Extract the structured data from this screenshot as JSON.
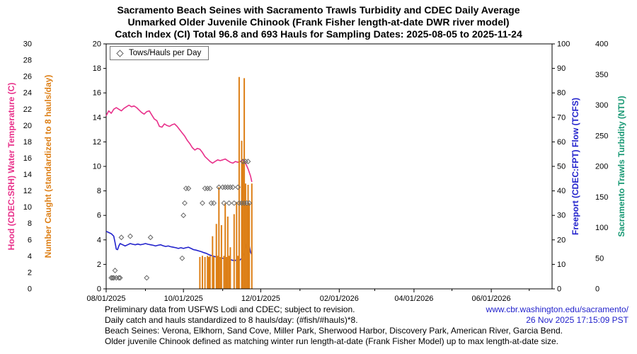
{
  "titles": {
    "line1": "Sacramento Beach Seines with Sacramento Trawls Turbidity and CDEC Daily Average",
    "line2": "Unmarked Older Juvenile Chinook (Frank Fisher length-at-date DWR river model)",
    "line3": "Catch Index (CI) Total 96.8 and 693 Hauls for Sampling Dates: 2025-08-05 to 2025-11-24"
  },
  "legend": {
    "symbol_icon": "open-diamond",
    "label": "Tows/Hauls per Day"
  },
  "axes": {
    "left_outer": {
      "label": "Hood (CDEC:SRH) Water Temperature (C)",
      "color": "#e8308a",
      "min": 0,
      "max": 30,
      "step": 2
    },
    "left_inner": {
      "label": "Number Caught (standardized to 8 hauls/day)",
      "color": "#dd7f16",
      "min": 0,
      "max": 20,
      "step": 2
    },
    "right_inner": {
      "label": "Freeport (CDEC:FPT) Flow (TCFS)",
      "color": "#2222cc",
      "min": 0,
      "max": 100,
      "step": 10
    },
    "right_outer": {
      "label": "Sacramento Trawls Turbidity (NTU)",
      "color": "#169873",
      "min": 0,
      "max": 400,
      "step": 50
    }
  },
  "chart_data": {
    "type": "mixed",
    "x_axis": {
      "start": "2025-08-01",
      "end": "2026-07-19",
      "tick_labels": [
        "08/01/2025",
        "10/01/2025",
        "12/01/2025",
        "02/01/2026",
        "04/01/2026",
        "06/01/2026"
      ]
    },
    "series": [
      {
        "id": "temperature",
        "name": "Hood (CDEC:SRH) Water Temperature (C)",
        "type": "line",
        "axis_max": 30,
        "color": "#e8308a",
        "points": [
          [
            "2025-08-01",
            21.2
          ],
          [
            "2025-08-03",
            21.8
          ],
          [
            "2025-08-05",
            21.5
          ],
          [
            "2025-08-07",
            22.0
          ],
          [
            "2025-08-09",
            22.2
          ],
          [
            "2025-08-11",
            22.0
          ],
          [
            "2025-08-13",
            21.8
          ],
          [
            "2025-08-15",
            22.1
          ],
          [
            "2025-08-17",
            22.3
          ],
          [
            "2025-08-19",
            22.5
          ],
          [
            "2025-08-21",
            22.3
          ],
          [
            "2025-08-23",
            22.4
          ],
          [
            "2025-08-25",
            22.2
          ],
          [
            "2025-08-27",
            21.9
          ],
          [
            "2025-08-29",
            21.6
          ],
          [
            "2025-08-31",
            21.4
          ],
          [
            "2025-09-02",
            21.7
          ],
          [
            "2025-09-04",
            21.8
          ],
          [
            "2025-09-06",
            21.3
          ],
          [
            "2025-09-08",
            20.8
          ],
          [
            "2025-09-10",
            20.6
          ],
          [
            "2025-09-12",
            19.9
          ],
          [
            "2025-09-14",
            19.8
          ],
          [
            "2025-09-16",
            20.2
          ],
          [
            "2025-09-18",
            20.0
          ],
          [
            "2025-09-20",
            19.9
          ],
          [
            "2025-09-22",
            20.1
          ],
          [
            "2025-09-24",
            20.2
          ],
          [
            "2025-09-26",
            19.9
          ],
          [
            "2025-09-28",
            19.5
          ],
          [
            "2025-09-30",
            19.1
          ],
          [
            "2025-10-02",
            18.7
          ],
          [
            "2025-10-04",
            18.2
          ],
          [
            "2025-10-06",
            17.8
          ],
          [
            "2025-10-08",
            17.3
          ],
          [
            "2025-10-10",
            17.0
          ],
          [
            "2025-10-12",
            17.2
          ],
          [
            "2025-10-14",
            17.1
          ],
          [
            "2025-10-16",
            16.7
          ],
          [
            "2025-10-18",
            16.2
          ],
          [
            "2025-10-20",
            15.9
          ],
          [
            "2025-10-22",
            15.6
          ],
          [
            "2025-10-24",
            15.4
          ],
          [
            "2025-10-26",
            15.6
          ],
          [
            "2025-10-28",
            15.8
          ],
          [
            "2025-10-30",
            15.7
          ],
          [
            "2025-11-01",
            15.8
          ],
          [
            "2025-11-03",
            15.9
          ],
          [
            "2025-11-05",
            15.7
          ],
          [
            "2025-11-07",
            15.5
          ],
          [
            "2025-11-09",
            15.4
          ],
          [
            "2025-11-11",
            15.6
          ],
          [
            "2025-11-13",
            15.5
          ],
          [
            "2025-11-15",
            15.6
          ],
          [
            "2025-11-17",
            15.8
          ],
          [
            "2025-11-19",
            15.4
          ],
          [
            "2025-11-21",
            14.7
          ],
          [
            "2025-11-23",
            13.8
          ],
          [
            "2025-11-24",
            13.1
          ]
        ]
      },
      {
        "id": "flow",
        "name": "Freeport (CDEC:FPT) Flow (TCFS)",
        "type": "line",
        "axis_max": 100,
        "color": "#2222cc",
        "points": [
          [
            "2025-08-01",
            23.5
          ],
          [
            "2025-08-03",
            23.0
          ],
          [
            "2025-08-05",
            22.5
          ],
          [
            "2025-08-07",
            21.5
          ],
          [
            "2025-08-08",
            19.0
          ],
          [
            "2025-08-09",
            16.2
          ],
          [
            "2025-08-10",
            16.0
          ],
          [
            "2025-08-11",
            17.5
          ],
          [
            "2025-08-12",
            18.5
          ],
          [
            "2025-08-14",
            18.0
          ],
          [
            "2025-08-16",
            17.5
          ],
          [
            "2025-08-18",
            18.0
          ],
          [
            "2025-08-20",
            18.5
          ],
          [
            "2025-08-22",
            18.2
          ],
          [
            "2025-08-24",
            18.0
          ],
          [
            "2025-08-26",
            18.3
          ],
          [
            "2025-08-28",
            18.0
          ],
          [
            "2025-08-30",
            18.2
          ],
          [
            "2025-09-01",
            18.5
          ],
          [
            "2025-09-03",
            18.2
          ],
          [
            "2025-09-05",
            18.0
          ],
          [
            "2025-09-07",
            17.8
          ],
          [
            "2025-09-09",
            17.5
          ],
          [
            "2025-09-11",
            17.8
          ],
          [
            "2025-09-13",
            18.0
          ],
          [
            "2025-09-15",
            17.6
          ],
          [
            "2025-09-17",
            17.3
          ],
          [
            "2025-09-19",
            17.5
          ],
          [
            "2025-09-21",
            17.2
          ],
          [
            "2025-09-23",
            17.0
          ],
          [
            "2025-09-25",
            16.8
          ],
          [
            "2025-09-27",
            16.5
          ],
          [
            "2025-09-29",
            16.8
          ],
          [
            "2025-10-01",
            16.5
          ],
          [
            "2025-10-03",
            16.8
          ],
          [
            "2025-10-05",
            17.0
          ],
          [
            "2025-10-07",
            16.5
          ],
          [
            "2025-10-09",
            16.0
          ],
          [
            "2025-10-11",
            15.8
          ],
          [
            "2025-10-13",
            15.5
          ],
          [
            "2025-10-15",
            15.2
          ],
          [
            "2025-10-17",
            14.8
          ],
          [
            "2025-10-19",
            14.5
          ],
          [
            "2025-10-21",
            14.0
          ],
          [
            "2025-10-23",
            13.6
          ],
          [
            "2025-10-25",
            13.3
          ],
          [
            "2025-10-27",
            13.0
          ],
          [
            "2025-10-29",
            12.8
          ],
          [
            "2025-10-31",
            12.6
          ],
          [
            "2025-11-02",
            12.4
          ],
          [
            "2025-11-04",
            12.2
          ],
          [
            "2025-11-06",
            12.0
          ],
          [
            "2025-11-08",
            11.8
          ],
          [
            "2025-11-10",
            11.5
          ],
          [
            "2025-11-12",
            11.8
          ],
          [
            "2025-11-14",
            11.5
          ],
          [
            "2025-11-16",
            12.5
          ],
          [
            "2025-11-18",
            14.5
          ],
          [
            "2025-11-19",
            16.5
          ],
          [
            "2025-11-20",
            18.5
          ],
          [
            "2025-11-21",
            19.5
          ],
          [
            "2025-11-22",
            17.5
          ],
          [
            "2025-11-23",
            15.0
          ],
          [
            "2025-11-24",
            14.0
          ]
        ]
      },
      {
        "id": "catch",
        "name": "Number Caught (standardized to 8 hauls/day)",
        "type": "bar",
        "axis_max": 20,
        "color": "#dd7f16",
        "points": [
          [
            "2025-10-14",
            2.6
          ],
          [
            "2025-10-16",
            2.7
          ],
          [
            "2025-10-18",
            2.6
          ],
          [
            "2025-10-20",
            2.7
          ],
          [
            "2025-10-21",
            2.6
          ],
          [
            "2025-10-22",
            2.7
          ],
          [
            "2025-10-24",
            4.3
          ],
          [
            "2025-10-25",
            2.6
          ],
          [
            "2025-10-27",
            5.3
          ],
          [
            "2025-10-28",
            2.7
          ],
          [
            "2025-10-29",
            8.3
          ],
          [
            "2025-10-30",
            2.6
          ],
          [
            "2025-10-31",
            5.2
          ],
          [
            "2025-11-02",
            2.7
          ],
          [
            "2025-11-03",
            7.0
          ],
          [
            "2025-11-04",
            2.6
          ],
          [
            "2025-11-05",
            5.9
          ],
          [
            "2025-11-06",
            2.7
          ],
          [
            "2025-11-07",
            3.4
          ],
          [
            "2025-11-10",
            6.1
          ],
          [
            "2025-11-12",
            7.1
          ],
          [
            "2025-11-13",
            2.7
          ],
          [
            "2025-11-14",
            17.3
          ],
          [
            "2025-11-16",
            12.1
          ],
          [
            "2025-11-17",
            10.4
          ],
          [
            "2025-11-18",
            17.2
          ],
          [
            "2025-11-19",
            8.6
          ],
          [
            "2025-11-20",
            6.9
          ],
          [
            "2025-11-21",
            8.5
          ],
          [
            "2025-11-22",
            7.0
          ],
          [
            "2025-11-24",
            8.6
          ]
        ]
      },
      {
        "id": "hauls",
        "name": "Tows/Hauls per Day",
        "type": "scatter-diamond",
        "axis_max": 20,
        "color": "#666666",
        "points": [
          [
            "2025-08-05",
            0.9
          ],
          [
            "2025-08-06",
            0.9
          ],
          [
            "2025-08-07",
            0.9
          ],
          [
            "2025-08-08",
            1.5
          ],
          [
            "2025-08-09",
            0.9
          ],
          [
            "2025-08-11",
            0.9
          ],
          [
            "2025-08-12",
            0.9
          ],
          [
            "2025-08-13",
            4.2
          ],
          [
            "2025-08-20",
            4.3
          ],
          [
            "2025-09-02",
            0.9
          ],
          [
            "2025-09-05",
            4.2
          ],
          [
            "2025-09-30",
            2.5
          ],
          [
            "2025-10-01",
            6.0
          ],
          [
            "2025-10-02",
            7.0
          ],
          [
            "2025-10-03",
            8.2
          ],
          [
            "2025-10-05",
            8.2
          ],
          [
            "2025-10-16",
            7.0
          ],
          [
            "2025-10-18",
            8.2
          ],
          [
            "2025-10-20",
            8.2
          ],
          [
            "2025-10-22",
            8.2
          ],
          [
            "2025-10-23",
            7.0
          ],
          [
            "2025-10-25",
            7.0
          ],
          [
            "2025-10-29",
            8.3
          ],
          [
            "2025-11-01",
            8.3
          ],
          [
            "2025-11-02",
            7.0
          ],
          [
            "2025-11-03",
            8.3
          ],
          [
            "2025-11-05",
            8.3
          ],
          [
            "2025-11-06",
            7.0
          ],
          [
            "2025-11-07",
            8.3
          ],
          [
            "2025-11-09",
            8.3
          ],
          [
            "2025-11-10",
            7.0
          ],
          [
            "2025-11-13",
            8.3
          ],
          [
            "2025-11-14",
            7.0
          ],
          [
            "2025-11-16",
            7.0
          ],
          [
            "2025-11-17",
            10.4
          ],
          [
            "2025-11-18",
            7.0
          ],
          [
            "2025-11-19",
            10.4
          ],
          [
            "2025-11-20",
            7.0
          ],
          [
            "2025-11-21",
            10.4
          ],
          [
            "2025-11-22",
            7.0
          ]
        ]
      }
    ]
  },
  "footer": {
    "lines": [
      "Preliminary data from USFWS Lodi and CDEC; subject to revision.",
      "Daily catch and hauls standardized to 8 hauls/day: (#fish/#hauls)*8.",
      "Beach Seines: Verona, Elkhorn, Sand Cove, Miller Park, Sherwood Harbor, Discovery Park, American River, Garcia Bend.",
      "Older juvenile Chinook defined as matching winter run length-at-date (Frank Fisher Model) up to max length-at-date size."
    ],
    "link": "www.cbr.washington.edu/sacramento/",
    "timestamp": "26 Nov 2025 17:15:09 PST",
    "link_color": "#2222cc"
  }
}
